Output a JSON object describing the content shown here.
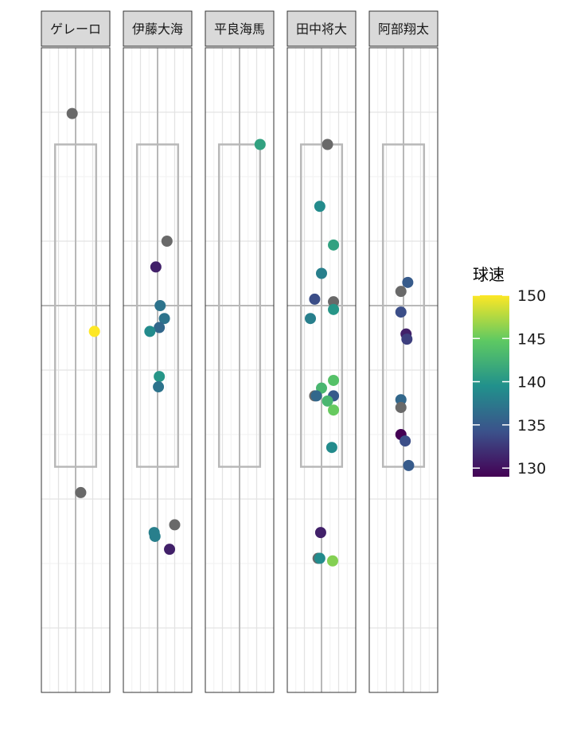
{
  "chart_data": {
    "type": "scatter",
    "facet_labels": [
      "ゲレーロ",
      "伊藤大海",
      "平良海馬",
      "田中将大",
      "阿部翔太"
    ],
    "xlim": [
      -2,
      2
    ],
    "ylim": [
      -0.5,
      4.5
    ],
    "zone": {
      "x": [
        -1.2,
        1.2
      ],
      "y": [
        1.25,
        3.75
      ]
    },
    "grid": true,
    "legend": {
      "title": "球速",
      "position": "right",
      "range": [
        129,
        150
      ],
      "ticks": [
        130,
        135,
        140,
        145,
        150
      ]
    },
    "colors": {
      "missing": "#696969",
      "zone": "#b8b8b8",
      "strip_fill": "#d9d9d9",
      "viridis": [
        "#440154",
        "#3b528b",
        "#21918c",
        "#5ec962",
        "#fde725"
      ]
    },
    "panels": [
      {
        "label": "ゲレーロ",
        "points": [
          {
            "x": -0.2,
            "y": 3.99,
            "speed": null
          },
          {
            "x": 1.1,
            "y": 2.3,
            "speed": 150
          },
          {
            "x": 0.3,
            "y": 1.05,
            "speed": null
          }
        ]
      },
      {
        "label": "伊藤大海",
        "points": [
          {
            "x": 0.55,
            "y": 3.0,
            "speed": null
          },
          {
            "x": -0.1,
            "y": 2.8,
            "speed": 131
          },
          {
            "x": 0.15,
            "y": 2.5,
            "speed": 137
          },
          {
            "x": 0.4,
            "y": 2.4,
            "speed": 137
          },
          {
            "x": 0.1,
            "y": 2.33,
            "speed": 136
          },
          {
            "x": -0.45,
            "y": 2.3,
            "speed": 139
          },
          {
            "x": 0.1,
            "y": 1.95,
            "speed": 140
          },
          {
            "x": 0.05,
            "y": 1.87,
            "speed": 137
          },
          {
            "x": 1.0,
            "y": 0.8,
            "speed": null
          },
          {
            "x": -0.2,
            "y": 0.74,
            "speed": 138
          },
          {
            "x": -0.15,
            "y": 0.71,
            "speed": 138
          },
          {
            "x": 0.7,
            "y": 0.61,
            "speed": 131
          }
        ]
      },
      {
        "label": "平良海馬",
        "points": [
          {
            "x": 1.2,
            "y": 3.75,
            "speed": 141
          }
        ]
      },
      {
        "label": "田中将大",
        "points": [
          {
            "x": 0.35,
            "y": 3.75,
            "speed": null
          },
          {
            "x": -0.1,
            "y": 3.27,
            "speed": 139
          },
          {
            "x": 0.7,
            "y": 2.97,
            "speed": 141
          },
          {
            "x": 0.0,
            "y": 2.75,
            "speed": 138
          },
          {
            "x": -0.4,
            "y": 2.55,
            "speed": 134
          },
          {
            "x": 0.7,
            "y": 2.53,
            "speed": null
          },
          {
            "x": 0.7,
            "y": 2.47,
            "speed": 140
          },
          {
            "x": -0.65,
            "y": 2.4,
            "speed": 138
          },
          {
            "x": 0.7,
            "y": 1.92,
            "speed": 144
          },
          {
            "x": 0.0,
            "y": 1.86,
            "speed": 143
          },
          {
            "x": -0.4,
            "y": 1.8,
            "speed": null
          },
          {
            "x": -0.3,
            "y": 1.8,
            "speed": 136
          },
          {
            "x": 0.7,
            "y": 1.8,
            "speed": 135
          },
          {
            "x": 0.35,
            "y": 1.76,
            "speed": 143
          },
          {
            "x": 0.7,
            "y": 1.69,
            "speed": 145
          },
          {
            "x": 0.6,
            "y": 1.4,
            "speed": 139
          },
          {
            "x": -0.05,
            "y": 0.74,
            "speed": 131
          },
          {
            "x": -0.2,
            "y": 0.54,
            "speed": null
          },
          {
            "x": -0.1,
            "y": 0.54,
            "speed": 139
          },
          {
            "x": 0.65,
            "y": 0.52,
            "speed": 146
          }
        ]
      },
      {
        "label": "阿部翔太",
        "points": [
          {
            "x": 0.25,
            "y": 2.68,
            "speed": 135
          },
          {
            "x": -0.15,
            "y": 2.61,
            "speed": null
          },
          {
            "x": -0.15,
            "y": 2.45,
            "speed": 134
          },
          {
            "x": 0.15,
            "y": 2.28,
            "speed": 131
          },
          {
            "x": 0.2,
            "y": 2.24,
            "speed": 133
          },
          {
            "x": -0.15,
            "y": 1.77,
            "speed": 136
          },
          {
            "x": -0.15,
            "y": 1.71,
            "speed": null
          },
          {
            "x": -0.15,
            "y": 1.5,
            "speed": 129
          },
          {
            "x": 0.1,
            "y": 1.45,
            "speed": 134
          },
          {
            "x": 0.3,
            "y": 1.26,
            "speed": 135
          }
        ]
      }
    ]
  }
}
